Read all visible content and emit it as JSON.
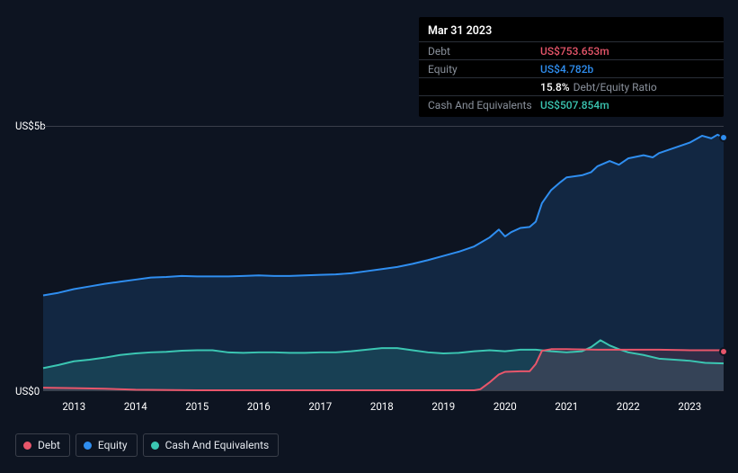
{
  "tooltip": {
    "date": "Mar 31 2023",
    "rows": [
      {
        "label": "Debt",
        "value": "US$753.653m",
        "color": "#e8566b"
      },
      {
        "label": "Equity",
        "value": "US$4.782b",
        "color": "#2f8ef0"
      },
      {
        "label": "",
        "value": "15.8%",
        "extra": "Debt/Equity Ratio",
        "color": "#ffffff"
      },
      {
        "label": "Cash And Equivalents",
        "value": "US$507.854m",
        "color": "#3bc6b2"
      }
    ]
  },
  "chart": {
    "type": "area-line",
    "background_color": "#0d1421",
    "grid_color": "#3a3f4a",
    "y_axis": {
      "min": 0,
      "max": 5,
      "ticks": [
        {
          "pos": 0,
          "label": "US$0"
        },
        {
          "pos": 5,
          "label": "US$5b"
        }
      ],
      "label_fontsize": 11.5,
      "label_color": "#ffffff"
    },
    "x_axis": {
      "years": [
        2013,
        2014,
        2015,
        2016,
        2017,
        2018,
        2019,
        2020,
        2021,
        2022,
        2023
      ],
      "min": 2012.5,
      "max": 2023.55,
      "label_fontsize": 11.5,
      "label_color": "#ffffff"
    },
    "series": [
      {
        "name": "Equity",
        "color": "#2f8ef0",
        "fill_opacity": 0.16,
        "line_width": 2,
        "points": [
          [
            2012.5,
            1.8
          ],
          [
            2012.75,
            1.85
          ],
          [
            2013,
            1.92
          ],
          [
            2013.25,
            1.97
          ],
          [
            2013.5,
            2.02
          ],
          [
            2013.75,
            2.06
          ],
          [
            2014,
            2.1
          ],
          [
            2014.25,
            2.14
          ],
          [
            2014.5,
            2.15
          ],
          [
            2014.75,
            2.17
          ],
          [
            2015,
            2.16
          ],
          [
            2015.25,
            2.16
          ],
          [
            2015.5,
            2.16
          ],
          [
            2015.75,
            2.17
          ],
          [
            2016,
            2.18
          ],
          [
            2016.25,
            2.17
          ],
          [
            2016.5,
            2.17
          ],
          [
            2016.75,
            2.18
          ],
          [
            2017,
            2.19
          ],
          [
            2017.25,
            2.2
          ],
          [
            2017.5,
            2.22
          ],
          [
            2017.75,
            2.26
          ],
          [
            2018,
            2.3
          ],
          [
            2018.25,
            2.34
          ],
          [
            2018.5,
            2.4
          ],
          [
            2018.75,
            2.47
          ],
          [
            2019,
            2.55
          ],
          [
            2019.25,
            2.63
          ],
          [
            2019.5,
            2.73
          ],
          [
            2019.75,
            2.9
          ],
          [
            2019.9,
            3.05
          ],
          [
            2020,
            2.92
          ],
          [
            2020.1,
            3.0
          ],
          [
            2020.25,
            3.08
          ],
          [
            2020.4,
            3.1
          ],
          [
            2020.5,
            3.2
          ],
          [
            2020.6,
            3.55
          ],
          [
            2020.75,
            3.8
          ],
          [
            2020.9,
            3.95
          ],
          [
            2021,
            4.04
          ],
          [
            2021.25,
            4.08
          ],
          [
            2021.4,
            4.14
          ],
          [
            2021.5,
            4.25
          ],
          [
            2021.7,
            4.35
          ],
          [
            2021.85,
            4.28
          ],
          [
            2022,
            4.4
          ],
          [
            2022.25,
            4.46
          ],
          [
            2022.4,
            4.42
          ],
          [
            2022.5,
            4.5
          ],
          [
            2022.75,
            4.6
          ],
          [
            2023,
            4.7
          ],
          [
            2023.2,
            4.83
          ],
          [
            2023.35,
            4.78
          ],
          [
            2023.45,
            4.85
          ],
          [
            2023.55,
            4.79
          ]
        ]
      },
      {
        "name": "Cash And Equivalents",
        "color": "#3bc6b2",
        "fill_opacity": 0.16,
        "line_width": 2,
        "points": [
          [
            2012.5,
            0.42
          ],
          [
            2012.75,
            0.48
          ],
          [
            2013,
            0.55
          ],
          [
            2013.25,
            0.58
          ],
          [
            2013.5,
            0.62
          ],
          [
            2013.75,
            0.67
          ],
          [
            2014,
            0.7
          ],
          [
            2014.25,
            0.72
          ],
          [
            2014.5,
            0.73
          ],
          [
            2014.75,
            0.75
          ],
          [
            2015,
            0.76
          ],
          [
            2015.25,
            0.76
          ],
          [
            2015.5,
            0.72
          ],
          [
            2015.75,
            0.71
          ],
          [
            2016,
            0.72
          ],
          [
            2016.25,
            0.72
          ],
          [
            2016.5,
            0.71
          ],
          [
            2016.75,
            0.71
          ],
          [
            2017,
            0.72
          ],
          [
            2017.25,
            0.72
          ],
          [
            2017.5,
            0.74
          ],
          [
            2017.75,
            0.77
          ],
          [
            2018,
            0.8
          ],
          [
            2018.25,
            0.8
          ],
          [
            2018.5,
            0.76
          ],
          [
            2018.75,
            0.72
          ],
          [
            2019,
            0.7
          ],
          [
            2019.25,
            0.71
          ],
          [
            2019.5,
            0.74
          ],
          [
            2019.75,
            0.76
          ],
          [
            2020,
            0.74
          ],
          [
            2020.25,
            0.77
          ],
          [
            2020.5,
            0.77
          ],
          [
            2020.75,
            0.74
          ],
          [
            2021,
            0.72
          ],
          [
            2021.25,
            0.74
          ],
          [
            2021.4,
            0.82
          ],
          [
            2021.55,
            0.95
          ],
          [
            2021.7,
            0.85
          ],
          [
            2021.85,
            0.78
          ],
          [
            2022,
            0.72
          ],
          [
            2022.25,
            0.67
          ],
          [
            2022.5,
            0.6
          ],
          [
            2022.75,
            0.58
          ],
          [
            2023,
            0.56
          ],
          [
            2023.25,
            0.52
          ],
          [
            2023.55,
            0.51
          ]
        ]
      },
      {
        "name": "Debt",
        "color": "#e8566b",
        "fill_opacity": 0.14,
        "line_width": 2,
        "points": [
          [
            2012.5,
            0.05
          ],
          [
            2013,
            0.04
          ],
          [
            2013.5,
            0.03
          ],
          [
            2014,
            0.01
          ],
          [
            2015,
            0.0
          ],
          [
            2016,
            0.0
          ],
          [
            2017,
            0.0
          ],
          [
            2018,
            0.0
          ],
          [
            2019,
            0.0
          ],
          [
            2019.5,
            0.0
          ],
          [
            2019.6,
            0.02
          ],
          [
            2019.75,
            0.15
          ],
          [
            2019.9,
            0.3
          ],
          [
            2020,
            0.35
          ],
          [
            2020.25,
            0.36
          ],
          [
            2020.4,
            0.36
          ],
          [
            2020.5,
            0.5
          ],
          [
            2020.6,
            0.75
          ],
          [
            2020.75,
            0.78
          ],
          [
            2021,
            0.78
          ],
          [
            2021.5,
            0.77
          ],
          [
            2022,
            0.77
          ],
          [
            2022.5,
            0.77
          ],
          [
            2023,
            0.76
          ],
          [
            2023.55,
            0.76
          ]
        ]
      }
    ],
    "end_markers": [
      {
        "series": "Equity",
        "color": "#2f8ef0"
      },
      {
        "series": "Debt",
        "color": "#e8566b"
      }
    ]
  },
  "legend": [
    {
      "label": "Debt",
      "color": "#e8566b"
    },
    {
      "label": "Equity",
      "color": "#2f8ef0"
    },
    {
      "label": "Cash And Equivalents",
      "color": "#3bc6b2"
    }
  ]
}
